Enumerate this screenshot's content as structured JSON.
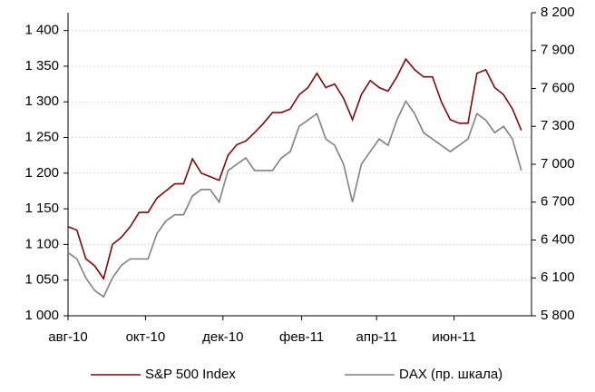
{
  "chart_data": {
    "type": "line",
    "x": [
      0,
      7,
      14,
      21,
      28,
      35,
      42,
      49,
      56,
      63,
      70,
      77,
      84,
      91,
      98,
      105,
      112,
      119,
      126,
      133,
      140,
      147,
      154,
      161,
      168,
      175,
      182,
      189,
      196,
      203,
      210,
      217,
      224,
      231,
      238,
      245,
      252,
      259,
      266,
      273,
      280,
      287,
      294,
      301,
      308,
      315,
      322,
      329,
      336,
      343,
      350,
      357
    ],
    "series": [
      {
        "name": "S&P 500 Index",
        "color": "#7b0a0a",
        "values": [
          1125,
          1120,
          1080,
          1070,
          1052,
          1100,
          1110,
          1125,
          1145,
          1145,
          1165,
          1175,
          1185,
          1185,
          1220,
          1200,
          1195,
          1190,
          1225,
          1240,
          1245,
          1257,
          1270,
          1285,
          1285,
          1290,
          1310,
          1320,
          1340,
          1320,
          1325,
          1305,
          1275,
          1310,
          1330,
          1320,
          1315,
          1335,
          1360,
          1345,
          1335,
          1335,
          1300,
          1275,
          1270,
          1270,
          1340,
          1345,
          1320,
          1310,
          1290,
          1260
        ]
      },
      {
        "name": "DAX (пр. шкала)",
        "color": "#808080",
        "axis": "y2",
        "values": [
          6300,
          6250,
          6100,
          6000,
          5950,
          6100,
          6200,
          6250,
          6250,
          6250,
          6450,
          6550,
          6600,
          6600,
          6750,
          6800,
          6800,
          6700,
          6950,
          7000,
          7050,
          6950,
          6950,
          6950,
          7050,
          7100,
          7300,
          7350,
          7400,
          7200,
          7150,
          7000,
          6700,
          7000,
          7100,
          7200,
          7150,
          7350,
          7500,
          7400,
          7250,
          7200,
          7150,
          7100,
          7150,
          7200,
          7400,
          7350,
          7250,
          7300,
          7200,
          6950
        ]
      }
    ],
    "xlim": [
      0,
      365
    ],
    "xticks": [
      {
        "value": 0,
        "label": "авг-10"
      },
      {
        "value": 61,
        "label": "окт-10"
      },
      {
        "value": 122,
        "label": "дек-10"
      },
      {
        "value": 184,
        "label": "фев-11"
      },
      {
        "value": 243,
        "label": "апр-11"
      },
      {
        "value": 304,
        "label": "июн-11"
      }
    ],
    "ylim": [
      1000,
      1425
    ],
    "yticks": [
      {
        "value": 1000,
        "label": "1 000"
      },
      {
        "value": 1050,
        "label": "1 050"
      },
      {
        "value": 1100,
        "label": "1 100"
      },
      {
        "value": 1150,
        "label": "1 150"
      },
      {
        "value": 1200,
        "label": "1 200"
      },
      {
        "value": 1250,
        "label": "1 250"
      },
      {
        "value": 1300,
        "label": "1 300"
      },
      {
        "value": 1350,
        "label": "1 350"
      },
      {
        "value": 1400,
        "label": "1 400"
      }
    ],
    "y2lim": [
      5800,
      8200
    ],
    "y2ticks": [
      {
        "value": 5800,
        "label": "5 800"
      },
      {
        "value": 6100,
        "label": "6 100"
      },
      {
        "value": 6400,
        "label": "6 400"
      },
      {
        "value": 6700,
        "label": "6 700"
      },
      {
        "value": 7000,
        "label": "7 000"
      },
      {
        "value": 7300,
        "label": "7 300"
      },
      {
        "value": 7600,
        "label": "7 600"
      },
      {
        "value": 7900,
        "label": "7 900"
      },
      {
        "value": 8200,
        "label": "8 200"
      }
    ],
    "grid": true
  }
}
